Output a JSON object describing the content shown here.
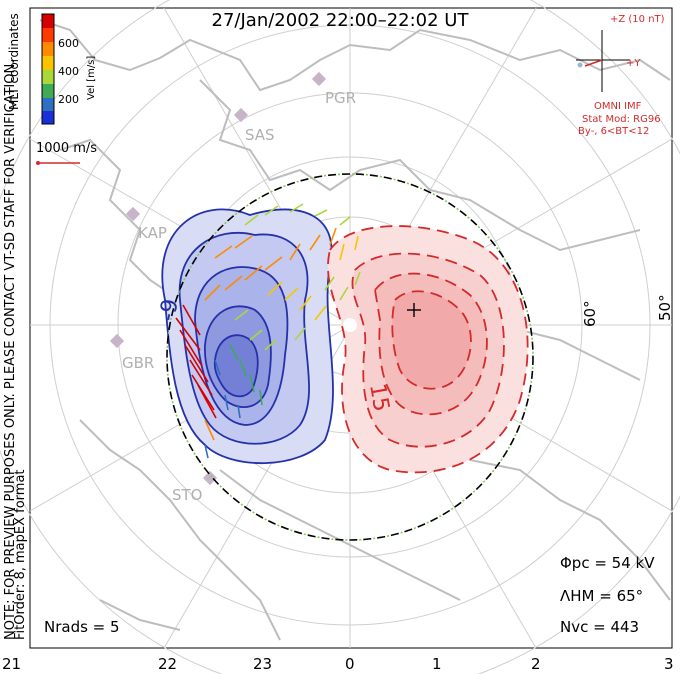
{
  "title": "27/Jan/2002 22:00–22:02 UT",
  "side_note": "NOTE: FOR PREVIEW PURPOSES ONLY. PLEASE CONTACT VT-SD STAFF FOR VERIFICATION.",
  "fit_note": "FitOrder: 8, mapEX format",
  "mlt_coords": "MLT coordinates",
  "colorbar": {
    "label": "Vel [m/s]",
    "ticks": [
      "600",
      "400",
      "200"
    ],
    "colors": [
      "#d60000",
      "#ff3a00",
      "#ff8a00",
      "#f7c600",
      "#a8d83a",
      "#3faa55",
      "#2d6fc0",
      "#1a2fd8"
    ]
  },
  "ref_vector": "1000 m/s",
  "imf": {
    "bz_label": "+Z (10 nT)",
    "by_label": "+Y",
    "source": "OMNI IMF",
    "model": "Stat Mod: RG96",
    "condition": "By-, 6<BT<12"
  },
  "stations": [
    "PGR",
    "SAS",
    "KAP",
    "GBR",
    "STO"
  ],
  "lat_labels": [
    "60°",
    "50°"
  ],
  "contour_labels": [
    "-9",
    "15"
  ],
  "mlt_axis": [
    "21",
    "22",
    "23",
    "0",
    "1",
    "2",
    "3"
  ],
  "stats": {
    "phi_pc": "Φpc = 54 kV",
    "lambda_hm": "ΛHM = 65°",
    "n_vc": "Nvc = 443",
    "n_rads": "Nrads = 5"
  },
  "colors": {
    "neg_fill": "#c7cdf0",
    "neg_line": "#2431a8",
    "pos_fill": "#f6c4c4",
    "pos_line": "#d42a2a",
    "grid": "#c8c8c8",
    "coast": "#c0c0c0"
  }
}
